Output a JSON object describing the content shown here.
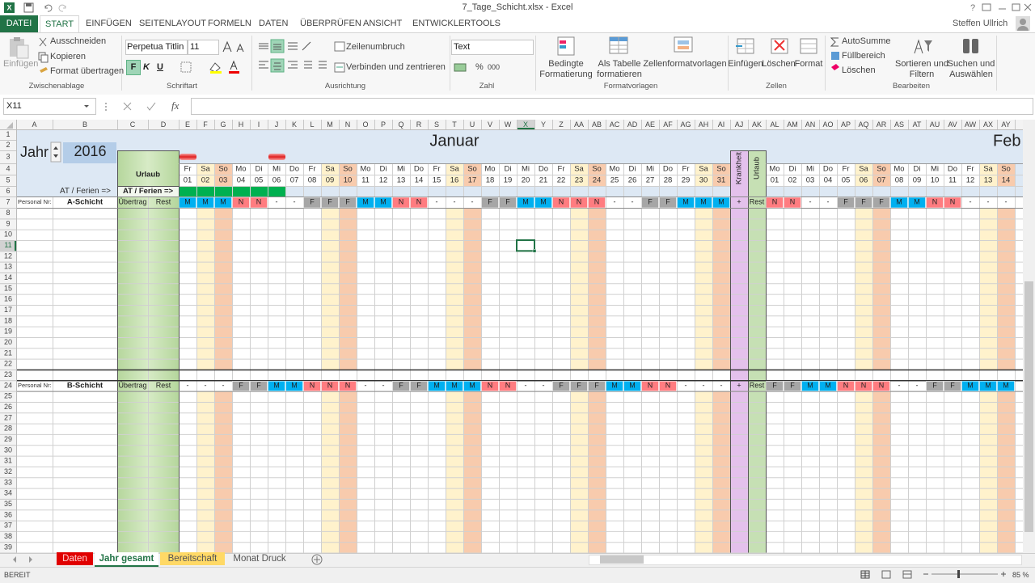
{
  "window": {
    "title": "7_Tage_Schicht.xlsx - Excel",
    "user": "Steffen Ullrich"
  },
  "ribbon_tabs": [
    "DATEI",
    "START",
    "EINFÜGEN",
    "SEITENLAYOUT",
    "FORMELN",
    "DATEN",
    "ÜBERPRÜFEN",
    "ANSICHT",
    "ENTWICKLERTOOLS"
  ],
  "ribbon": {
    "clipboard": {
      "paste": "Einfügen",
      "cut": "Ausschneiden",
      "copy": "Kopieren",
      "format_painter": "Format übertragen",
      "group": "Zwischenablage"
    },
    "font": {
      "name": "Perpetua Titlin",
      "size": "11",
      "bold": "F",
      "italic": "K",
      "underline": "U",
      "group": "Schriftart"
    },
    "alignment": {
      "wrap": "Zeilenumbruch",
      "merge": "Verbinden und zentrieren",
      "group": "Ausrichtung"
    },
    "number": {
      "format": "Text",
      "percent": "%",
      "thousands": "000",
      "group": "Zahl"
    },
    "styles": {
      "conditional": [
        "Bedingte",
        "Formatierung"
      ],
      "table": [
        "Als Tabelle",
        "formatieren"
      ],
      "cell_styles": "Zellenformatvorlagen",
      "group": "Formatvorlagen"
    },
    "cells": {
      "insert": "Einfügen",
      "delete": "Löschen",
      "format": "Format",
      "group": "Zellen"
    },
    "editing": {
      "autosum": "AutoSumme",
      "fill": "Füllbereich",
      "clear": "Löschen",
      "sort": [
        "Sortieren und",
        "Filtern"
      ],
      "find": [
        "Suchen und",
        "Auswählen"
      ],
      "group": "Bearbeiten"
    }
  },
  "formula_bar": {
    "name_box": "X11",
    "fx": "fx"
  },
  "sheet": {
    "column_letters": [
      "A",
      "B",
      "C",
      "D",
      "E",
      "F",
      "G",
      "H",
      "I",
      "J",
      "K",
      "L",
      "M",
      "N",
      "O",
      "P",
      "Q",
      "R",
      "S",
      "T",
      "U",
      "V",
      "W",
      "X",
      "Y",
      "Z",
      "AA",
      "AB",
      "AC",
      "AD",
      "AE",
      "AF",
      "AG",
      "AH",
      "AI",
      "AJ",
      "AK",
      "AL",
      "AM",
      "AN",
      "AO",
      "AP",
      "AQ",
      "AR",
      "AS",
      "AT",
      "AU",
      "AV",
      "AW",
      "AX",
      "AY"
    ],
    "row_numbers": [
      1,
      2,
      3,
      4,
      5,
      6,
      7,
      8,
      9,
      10,
      11,
      12,
      13,
      14,
      15,
      16,
      17,
      18,
      19,
      20,
      21,
      22,
      23,
      24,
      25,
      26,
      27,
      28,
      29,
      30,
      31,
      32,
      33,
      34,
      35,
      36,
      37,
      38,
      39
    ],
    "year_label": "Jahr",
    "year": "2016",
    "months": [
      "Januar",
      "Feb"
    ],
    "vacation_header": "Urlaub",
    "holidays_label": "AT / Ferien =>",
    "holidays_label_box": "AT / Ferien =>",
    "day_columns": [
      {
        "weekday": "Fr",
        "day": "01"
      },
      {
        "weekday": "Sa",
        "day": "02"
      },
      {
        "weekday": "So",
        "day": "03"
      },
      {
        "weekday": "Mo",
        "day": "04"
      },
      {
        "weekday": "Di",
        "day": "05"
      },
      {
        "weekday": "Mi",
        "day": "06"
      },
      {
        "weekday": "Do",
        "day": "07"
      },
      {
        "weekday": "Fr",
        "day": "08"
      },
      {
        "weekday": "Sa",
        "day": "09"
      },
      {
        "weekday": "So",
        "day": "10"
      },
      {
        "weekday": "Mo",
        "day": "11"
      },
      {
        "weekday": "Di",
        "day": "12"
      },
      {
        "weekday": "Mi",
        "day": "13"
      },
      {
        "weekday": "Do",
        "day": "14"
      },
      {
        "weekday": "Fr",
        "day": "15"
      },
      {
        "weekday": "Sa",
        "day": "16"
      },
      {
        "weekday": "So",
        "day": "17"
      },
      {
        "weekday": "Mo",
        "day": "18"
      },
      {
        "weekday": "Di",
        "day": "19"
      },
      {
        "weekday": "Mi",
        "day": "20"
      },
      {
        "weekday": "Do",
        "day": "21"
      },
      {
        "weekday": "Fr",
        "day": "22"
      },
      {
        "weekday": "Sa",
        "day": "23"
      },
      {
        "weekday": "So",
        "day": "24"
      },
      {
        "weekday": "Mo",
        "day": "25"
      },
      {
        "weekday": "Di",
        "day": "26"
      },
      {
        "weekday": "Mi",
        "day": "27"
      },
      {
        "weekday": "Do",
        "day": "28"
      },
      {
        "weekday": "Fr",
        "day": "29"
      },
      {
        "weekday": "Sa",
        "day": "30"
      },
      {
        "weekday": "So",
        "day": "31"
      },
      {
        "label": "Krankheit"
      },
      {
        "label": "Urlaub"
      },
      {
        "weekday": "Mo",
        "day": "01"
      },
      {
        "weekday": "Di",
        "day": "02"
      },
      {
        "weekday": "Mi",
        "day": "03"
      },
      {
        "weekday": "Do",
        "day": "04"
      },
      {
        "weekday": "Fr",
        "day": "05"
      },
      {
        "weekday": "Sa",
        "day": "06"
      },
      {
        "weekday": "So",
        "day": "07"
      },
      {
        "weekday": "Mo",
        "day": "08"
      },
      {
        "weekday": "Di",
        "day": "09"
      },
      {
        "weekday": "Mi",
        "day": "10"
      },
      {
        "weekday": "Do",
        "day": "11"
      },
      {
        "weekday": "Fr",
        "day": "12"
      },
      {
        "weekday": "Sa",
        "day": "13"
      },
      {
        "weekday": "So",
        "day": "14"
      }
    ],
    "groups": [
      {
        "personal_nr": "Personal Nr:",
        "name": "A-Schicht",
        "carryover": "Übertrag",
        "rest": "Rest",
        "codes": [
          "M",
          "M",
          "M",
          "N",
          "N",
          "-",
          "-",
          "F",
          "F",
          "F",
          "M",
          "M",
          "N",
          "N",
          "-",
          "-",
          "-",
          "F",
          "F",
          "M",
          "M",
          "N",
          "N",
          "N",
          "-",
          "-",
          "F",
          "F",
          "M",
          "M",
          "M",
          "+",
          "Rest",
          "N",
          "N",
          "-",
          "-",
          "F",
          "F",
          "F",
          "M",
          "M",
          "N",
          "N",
          "-",
          "-",
          "-"
        ]
      },
      {
        "personal_nr": "Personal Nr:",
        "name": "B-Schicht",
        "carryover": "Übertrag",
        "rest": "Rest",
        "codes": [
          "-",
          "-",
          "-",
          "F",
          "F",
          "M",
          "M",
          "N",
          "N",
          "N",
          "-",
          "-",
          "F",
          "F",
          "M",
          "M",
          "M",
          "N",
          "N",
          "-",
          "-",
          "F",
          "F",
          "F",
          "M",
          "M",
          "N",
          "N",
          "-",
          "-",
          "-",
          "+",
          "Rest",
          "F",
          "F",
          "M",
          "M",
          "N",
          "N",
          "N",
          "-",
          "-",
          "F",
          "F",
          "M",
          "M",
          "M"
        ]
      }
    ]
  },
  "sheet_tabs": [
    "Daten",
    "Jahr gesamt",
    "Bereitschaft",
    "Monat Druck"
  ],
  "status": {
    "mode": "BEREIT",
    "zoom": "85 %"
  }
}
